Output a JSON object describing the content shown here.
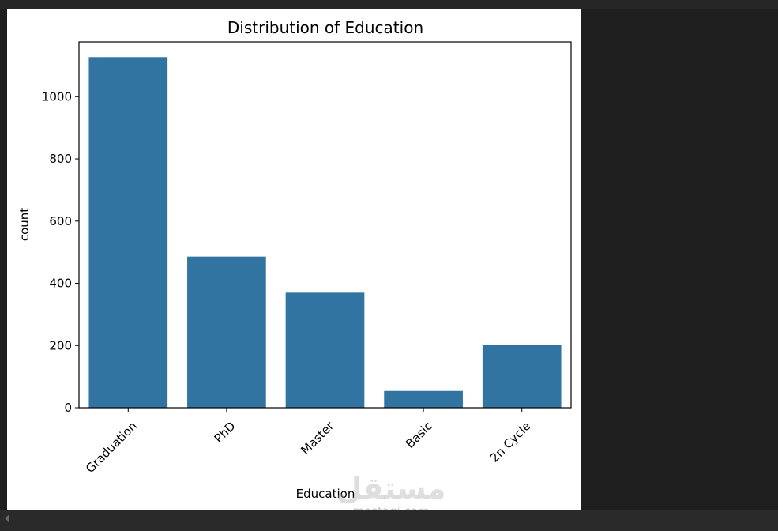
{
  "chart_data": {
    "type": "bar",
    "title": "Distribution of Education",
    "xlabel": "Education",
    "ylabel": "count",
    "categories": [
      "Graduation",
      "PhD",
      "Master",
      "Basic",
      "2n Cycle"
    ],
    "values": [
      1127,
      486,
      370,
      54,
      203
    ],
    "ylim": [
      0,
      1176
    ],
    "yticks": [
      0,
      200,
      400,
      600,
      800,
      1000
    ],
    "bar_color": "#3274a1",
    "grid": false,
    "legend": "none"
  },
  "watermark": {
    "arabic": "مستقل",
    "latin": "mostaqi.com"
  },
  "colors": {
    "page_background": "#1e1e1e",
    "figure_background": "#ffffff",
    "axis_color": "#000000"
  }
}
